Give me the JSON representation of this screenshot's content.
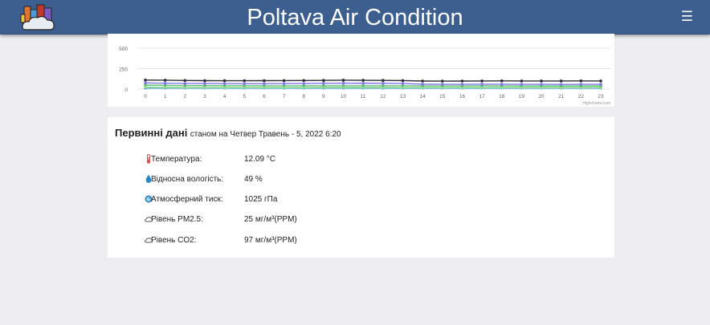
{
  "header": {
    "title": "Poltava Air Condition",
    "menu_icon": "☰",
    "logo_icon": "city-cloud-logo-icon",
    "background": "#3c5f8f"
  },
  "chart_data": {
    "type": "line",
    "x": [
      0,
      1,
      2,
      3,
      4,
      5,
      6,
      7,
      8,
      9,
      10,
      11,
      12,
      13,
      14,
      15,
      16,
      17,
      18,
      19,
      20,
      21,
      22,
      23
    ],
    "y_ticks": [
      0,
      250,
      500
    ],
    "ylim": [
      0,
      500
    ],
    "grid": true,
    "credit": "Highcharts.com",
    "series": [
      {
        "color": "#2b2b35",
        "values": [
          110,
          108,
          105,
          103,
          102,
          102,
          103,
          104,
          105,
          106,
          108,
          107,
          106,
          104,
          98,
          97,
          98,
          99,
          100,
          99,
          99,
          99,
          100,
          99
        ]
      },
      {
        "color": "#7d78e6",
        "values": [
          75,
          70,
          68,
          68,
          67,
          66,
          66,
          67,
          68,
          70,
          72,
          71,
          70,
          68,
          60,
          58,
          58,
          59,
          59,
          58,
          58,
          57,
          58,
          58
        ]
      },
      {
        "color": "#5fbf73",
        "values": [
          49,
          45,
          42,
          42,
          41,
          41,
          40,
          40,
          40,
          40,
          40,
          40,
          40,
          40,
          39,
          39,
          39,
          40,
          39,
          39,
          38,
          38,
          38,
          38
        ]
      },
      {
        "color": "#9be48a",
        "values": [
          25,
          22,
          20,
          20,
          20,
          20,
          20,
          20,
          20,
          21,
          21,
          21,
          21,
          20,
          20,
          20,
          20,
          20,
          20,
          20,
          20,
          20,
          20,
          20
        ]
      },
      {
        "color": "#4aa5d8",
        "values": [
          12,
          12,
          12,
          12,
          12,
          12,
          12,
          12,
          12,
          12,
          12,
          12,
          12,
          12,
          12,
          12,
          12,
          12,
          12,
          12,
          12,
          12,
          12,
          12
        ]
      }
    ]
  },
  "data": {
    "title": "Первинні дані",
    "subtitle": "станом на Четвер Травень - 5, 2022 6:20",
    "rows": [
      {
        "icon": "thermometer-icon",
        "label": "Температура:",
        "value": "12.09 °C",
        "color": "#d9534f"
      },
      {
        "icon": "water-drop-icon",
        "label": "Відносна вологість:",
        "value": "49 %",
        "color": "#2a87c8"
      },
      {
        "icon": "pressure-gauge-icon",
        "label": "Атмосферний тиск:",
        "value": "1025 гПа",
        "color": "#2a87c8"
      },
      {
        "icon": "cloud-icon",
        "label": "Рівень PM2.5:",
        "value": "25 мг/м³(PPM)",
        "color": "#555555"
      },
      {
        "icon": "cloud-icon",
        "label": "Рівень CO2:",
        "value": "97 мг/м³(PPM)",
        "color": "#555555"
      }
    ]
  }
}
